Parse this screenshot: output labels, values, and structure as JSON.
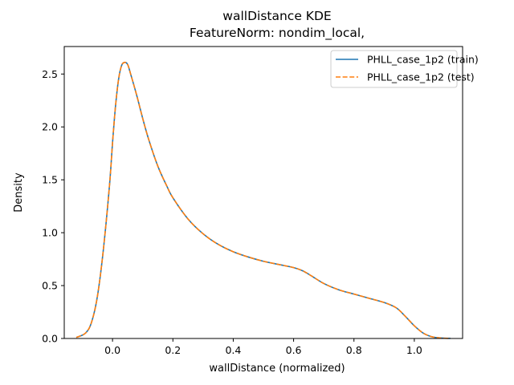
{
  "chart_data": {
    "type": "line",
    "title": "wallDistance KDE",
    "subtitle": "FeatureNorm: nondim_local,",
    "xlabel": "wallDistance (normalized)",
    "ylabel": "Density",
    "xlim": [
      -0.16,
      1.16
    ],
    "ylim": [
      0,
      2.76
    ],
    "xticks": [
      0.0,
      0.2,
      0.4,
      0.6,
      0.8,
      1.0
    ],
    "xtick_labels": [
      "0.0",
      "0.2",
      "0.4",
      "0.6",
      "0.8",
      "1.0"
    ],
    "yticks": [
      0.0,
      0.5,
      1.0,
      1.5,
      2.0,
      2.5
    ],
    "ytick_labels": [
      "0.0",
      "0.5",
      "1.0",
      "1.5",
      "2.0",
      "2.5"
    ],
    "grid": false,
    "legend": "top-right",
    "x": [
      -0.12,
      -0.09,
      -0.07,
      -0.05,
      -0.03,
      -0.01,
      0.0,
      0.01,
      0.02,
      0.03,
      0.04,
      0.05,
      0.06,
      0.08,
      0.1,
      0.12,
      0.15,
      0.18,
      0.2,
      0.25,
      0.3,
      0.35,
      0.4,
      0.45,
      0.5,
      0.55,
      0.6,
      0.63,
      0.66,
      0.7,
      0.75,
      0.8,
      0.85,
      0.9,
      0.94,
      0.97,
      1.0,
      1.03,
      1.06,
      1.09,
      1.12
    ],
    "series": [
      {
        "name": "PHLL_case_1p2 (train)",
        "color": "#1f77b4",
        "dash": "solid",
        "values": [
          0.01,
          0.05,
          0.15,
          0.4,
          0.85,
          1.45,
          1.85,
          2.2,
          2.45,
          2.58,
          2.61,
          2.59,
          2.5,
          2.3,
          2.08,
          1.88,
          1.63,
          1.44,
          1.33,
          1.13,
          0.99,
          0.89,
          0.82,
          0.77,
          0.73,
          0.7,
          0.67,
          0.64,
          0.59,
          0.52,
          0.46,
          0.42,
          0.38,
          0.34,
          0.29,
          0.21,
          0.12,
          0.05,
          0.015,
          0.004,
          0.001
        ]
      },
      {
        "name": "PHLL_case_1p2 (test)",
        "color": "#ff7f0e",
        "dash": "dashed",
        "values": [
          0.01,
          0.05,
          0.15,
          0.4,
          0.85,
          1.45,
          1.85,
          2.2,
          2.45,
          2.58,
          2.61,
          2.59,
          2.5,
          2.3,
          2.08,
          1.88,
          1.63,
          1.44,
          1.33,
          1.13,
          0.99,
          0.89,
          0.82,
          0.77,
          0.73,
          0.7,
          0.67,
          0.64,
          0.59,
          0.52,
          0.46,
          0.42,
          0.38,
          0.34,
          0.29,
          0.21,
          0.12,
          0.05,
          0.015,
          0.004,
          0.001
        ]
      }
    ]
  }
}
